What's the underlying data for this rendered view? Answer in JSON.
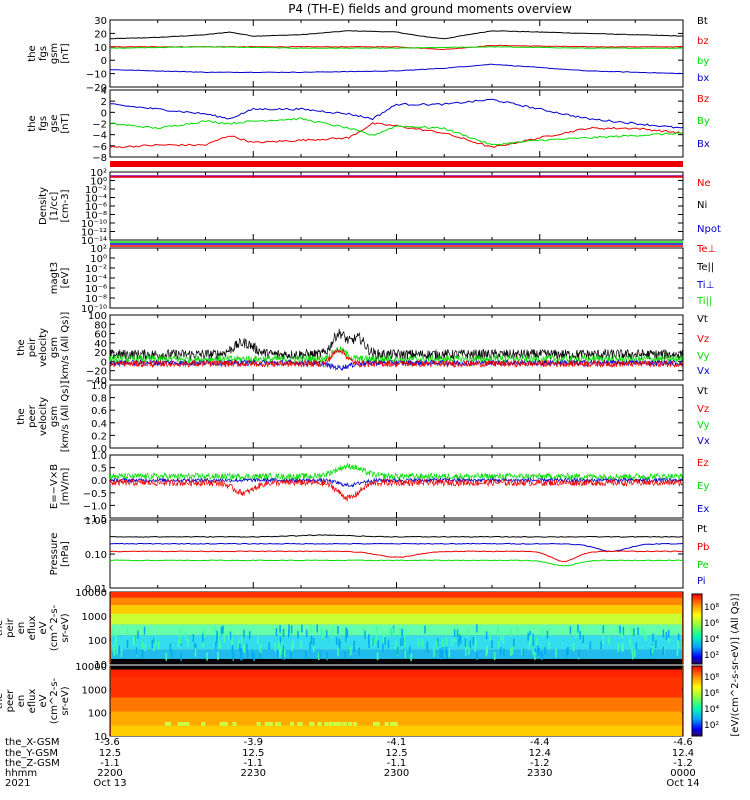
{
  "title": "P4 (TH-E) fields and ground moments overview",
  "colors": {
    "black": "#000000",
    "red": "#ee0000",
    "green": "#00dd00",
    "blue": "#0000cc",
    "purple": "#8800aa"
  },
  "time_axis": {
    "range_hhmm": [
      "2200",
      "0000"
    ],
    "ticks": [
      {
        "hhmm": "2200",
        "date": "Oct 13",
        "x_gsm": "-3.6",
        "y_gsm": "12.5",
        "z_gsm": "-1.1"
      },
      {
        "hhmm": "2230",
        "date": "",
        "x_gsm": "-3.9",
        "y_gsm": "12.5",
        "z_gsm": "-1.1"
      },
      {
        "hhmm": "2300",
        "date": "",
        "x_gsm": "-4.1",
        "y_gsm": "12.5",
        "z_gsm": "-1.1"
      },
      {
        "hhmm": "2330",
        "date": "",
        "x_gsm": "-4.4",
        "y_gsm": "12.4",
        "z_gsm": "-1.2"
      },
      {
        "hhmm": "0000",
        "date": "Oct 14",
        "x_gsm": "-4.6",
        "y_gsm": "12.4",
        "z_gsm": "-1.2"
      }
    ],
    "row_labels": [
      "the_X-GSM",
      "the_Y-GSM",
      "the_Z-GSM",
      "hhmm",
      "2021"
    ]
  },
  "colorbar": {
    "label": "[eV/(cm^2-s-sr-eV)] (All Qs)]",
    "ticks_top": [
      "10⁸",
      "10⁶",
      "10⁴",
      "10²"
    ],
    "ticks_bottom": [
      "10⁸",
      "10⁶",
      "10⁴",
      "10²"
    ]
  },
  "chart_data": [
    {
      "type": "line",
      "panel": "fgs_gsm",
      "ylabel": [
        "the",
        "fgs",
        "gsm",
        "[nT]"
      ],
      "ylim": [
        -20,
        30
      ],
      "yticks": [
        "30",
        "20",
        "10",
        "0",
        "−10",
        "−20"
      ],
      "series": [
        {
          "name": "Bt",
          "color": "black",
          "x": [
            0,
            10,
            20,
            25,
            30,
            40,
            50,
            60,
            65,
            70,
            80,
            90,
            100,
            110,
            120
          ],
          "y": [
            16,
            17,
            19,
            21,
            18,
            19,
            22,
            21,
            18,
            16,
            22,
            21,
            20,
            19,
            18
          ]
        },
        {
          "name": "bz",
          "color": "red",
          "x": [
            0,
            20,
            40,
            60,
            70,
            80,
            100,
            120
          ],
          "y": [
            10,
            10,
            10,
            10,
            8,
            11,
            10,
            10
          ]
        },
        {
          "name": "by",
          "color": "green",
          "x": [
            0,
            20,
            40,
            60,
            80,
            100,
            120
          ],
          "y": [
            9,
            10,
            9,
            9,
            10,
            9,
            9
          ]
        },
        {
          "name": "bx",
          "color": "blue",
          "x": [
            0,
            10,
            20,
            40,
            60,
            70,
            80,
            100,
            120
          ],
          "y": [
            -7,
            -8,
            -9,
            -9,
            -8,
            -6,
            -3,
            -8,
            -10
          ]
        }
      ]
    },
    {
      "type": "line",
      "panel": "fgs_gse",
      "ylabel": [
        "the",
        "fgs",
        "gse",
        "[nT]"
      ],
      "ylim": [
        -9,
        5
      ],
      "yticks": [
        "4",
        "2",
        "0",
        "−2",
        "−4",
        "−6",
        "−8"
      ],
      "series": [
        {
          "name": "Bz",
          "color": "red",
          "x": [
            0,
            10,
            20,
            25,
            30,
            40,
            50,
            55,
            60,
            70,
            80,
            90,
            100,
            110,
            120
          ],
          "y": [
            -7,
            -6.5,
            -6.5,
            -4.5,
            -6,
            -5.5,
            -5,
            -2,
            -2.5,
            -4,
            -7,
            -5,
            -3,
            -3,
            -4
          ]
        },
        {
          "name": "By",
          "color": "green",
          "x": [
            0,
            10,
            20,
            25,
            30,
            40,
            50,
            55,
            60,
            70,
            80,
            90,
            100,
            110,
            120
          ],
          "y": [
            -2,
            -3,
            -1.5,
            -2,
            -1.5,
            -1,
            -3,
            -4.5,
            -2.5,
            -3,
            -6.5,
            -5.5,
            -5,
            -4.5,
            -4
          ]
        },
        {
          "name": "Bx",
          "color": "blue",
          "x": [
            0,
            10,
            20,
            25,
            30,
            40,
            50,
            55,
            60,
            70,
            80,
            90,
            100,
            110,
            120
          ],
          "y": [
            2,
            1,
            0,
            -1,
            1,
            1,
            0,
            -1,
            2,
            2,
            3,
            1,
            -1,
            -2,
            -3
          ]
        }
      ]
    },
    {
      "type": "line",
      "panel": "density",
      "ylabel": [
        "Density",
        "[1/cc]",
        "[cm-3]"
      ],
      "log": true,
      "ylim": [
        1e-14,
        100
      ],
      "yticks": [
        "10²",
        "10⁰",
        "10⁻²",
        "10⁻⁴",
        "10⁻⁶",
        "10⁻⁸",
        "10⁻¹⁰",
        "10⁻¹²",
        "10⁻¹⁴"
      ],
      "series": [
        {
          "name": "Ne",
          "color": "red"
        },
        {
          "name": "Ni",
          "color": "black"
        },
        {
          "name": "Npot",
          "color": "blue"
        }
      ]
    },
    {
      "type": "line",
      "panel": "temperature",
      "ylabel": [
        "magt3",
        "[eV]"
      ],
      "log": true,
      "ylim": [
        1e-10,
        100
      ],
      "yticks": [
        "10²",
        "10⁰",
        "10⁻²",
        "10⁻⁴",
        "10⁻⁶",
        "10⁻⁸",
        "10⁻¹⁰"
      ],
      "series": [
        {
          "name": "Te⊥",
          "color": "red"
        },
        {
          "name": "Te||",
          "color": "black"
        },
        {
          "name": "Ti⊥",
          "color": "blue"
        },
        {
          "name": "Ti||",
          "color": "green"
        }
      ]
    },
    {
      "type": "line",
      "panel": "peir_velocity",
      "ylabel": [
        "the",
        "peir",
        "velocity",
        "gsm",
        "[km/s (All Qs)]"
      ],
      "ylim": [
        -40,
        100
      ],
      "yticks": [
        "100",
        "80",
        "60",
        "40",
        "20",
        "0",
        "−20",
        "−40"
      ],
      "series": [
        {
          "name": "Vt",
          "color": "black"
        },
        {
          "name": "Vz",
          "color": "red"
        },
        {
          "name": "Vy",
          "color": "green"
        },
        {
          "name": "Vx",
          "color": "blue"
        }
      ]
    },
    {
      "type": "line",
      "panel": "peer_velocity",
      "ylabel": [
        "the",
        "peer",
        "velocity",
        "gsm",
        "[km/s (All Qs)]"
      ],
      "ylim": [
        0,
        1
      ],
      "yticks": [
        "1.0",
        "0.8",
        "0.6",
        "0.4",
        "0.2",
        "0.0"
      ],
      "series": [
        {
          "name": "Vt",
          "color": "black"
        },
        {
          "name": "Vz",
          "color": "red"
        },
        {
          "name": "Vy",
          "color": "green"
        },
        {
          "name": "Vx",
          "color": "blue"
        }
      ]
    },
    {
      "type": "line",
      "panel": "efield",
      "ylabel": [
        "E=−V×B",
        "[mV/m]"
      ],
      "ylim": [
        -1.5,
        1
      ],
      "yticks": [
        "1.0",
        "0.5",
        "0.0",
        "−0.5",
        "−1.0",
        "−1.5"
      ],
      "series": [
        {
          "name": "Ez",
          "color": "red"
        },
        {
          "name": "Ey",
          "color": "green"
        },
        {
          "name": "Ex",
          "color": "blue"
        }
      ]
    },
    {
      "type": "line",
      "panel": "pressure",
      "ylabel": [
        "Pressure",
        "[nPa]"
      ],
      "log": true,
      "ylim": [
        0.01,
        1
      ],
      "yticks": [
        "1.00",
        "0.10",
        "0.01"
      ],
      "series": [
        {
          "name": "Pt",
          "color": "black"
        },
        {
          "name": "Pb",
          "color": "red"
        },
        {
          "name": "Pe",
          "color": "green"
        },
        {
          "name": "Pi",
          "color": "blue"
        }
      ]
    },
    {
      "type": "heatmap",
      "panel": "peir_eflux",
      "ylabel": [
        "the",
        "peir",
        "en",
        "eflux",
        "eV",
        "(cm^2-s-",
        "sr-eV)"
      ],
      "yticks": [
        "10000",
        "1000",
        "100",
        "10"
      ]
    },
    {
      "type": "heatmap",
      "panel": "peer_eflux",
      "ylabel": [
        "the",
        "peer",
        "en",
        "eflux",
        "eV",
        "(cm^2-s-",
        "sr-eV)"
      ],
      "yticks": [
        "10000",
        "1000",
        "100",
        "10"
      ]
    }
  ]
}
